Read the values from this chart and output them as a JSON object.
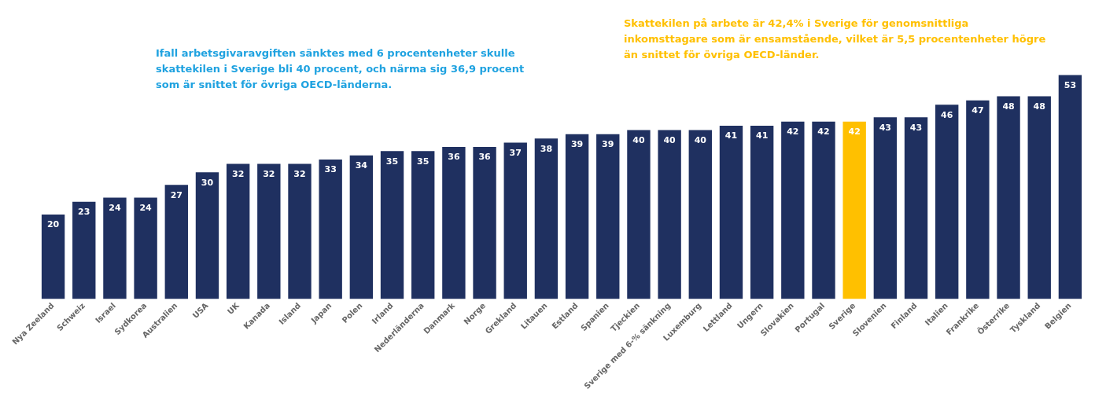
{
  "chart_data": {
    "type": "bar",
    "categories": [
      "Nya Zeeland",
      "Schweiz",
      "Israel",
      "Sydkorea",
      "Australien",
      "USA",
      "UK",
      "Kanada",
      "Island",
      "Japan",
      "Polen",
      "Irland",
      "Nederländerna",
      "Danmark",
      "Norge",
      "Grekland",
      "Litauen",
      "Estland",
      "Spanien",
      "Tjeckien",
      "Sverige med 6-% sänkning",
      "Luxemburg",
      "Lettland",
      "Ungern",
      "Slovakien",
      "Portugal",
      "Sverige",
      "Slovenien",
      "Finland",
      "Italien",
      "Frankrike",
      "Österrike",
      "Tyskland",
      "Belgien"
    ],
    "values": [
      20,
      23,
      24,
      24,
      27,
      30,
      32,
      32,
      32,
      33,
      34,
      35,
      35,
      36,
      36,
      37,
      38,
      39,
      39,
      40,
      40,
      40,
      41,
      41,
      42,
      42,
      42,
      43,
      43,
      46,
      47,
      48,
      48,
      53
    ],
    "colors": [
      "#1f3060",
      "#1f3060",
      "#1f3060",
      "#1f3060",
      "#1f3060",
      "#1f3060",
      "#1f3060",
      "#1f3060",
      "#1f3060",
      "#1f3060",
      "#1f3060",
      "#1f3060",
      "#1f3060",
      "#1f3060",
      "#1f3060",
      "#1f3060",
      "#1f3060",
      "#1f3060",
      "#1f3060",
      "#1f3060",
      "#1f3060",
      "#1f3060",
      "#1f3060",
      "#1f3060",
      "#1f3060",
      "#1f3060",
      "#ffc000",
      "#1f3060",
      "#1f3060",
      "#1f3060",
      "#1f3060",
      "#1f3060",
      "#1f3060",
      "#1f3060"
    ],
    "data_labels": true,
    "grid": false,
    "legend": false,
    "annotations": [
      "Ifall arbetsgivaravgiften sänktes med 6 procentenheter skulle skattekilen i Sverige bli 40 procent, och närma sig 36,9 procent som är snittet för övriga OECD-länderna.",
      "Skattekilen på arbete är 42,4% i Sverige för genomsnittliga inkomsttagare som är ensamstående, vilket är 5,5 procentenheter högre än snittet för övriga OECD-länder."
    ]
  }
}
